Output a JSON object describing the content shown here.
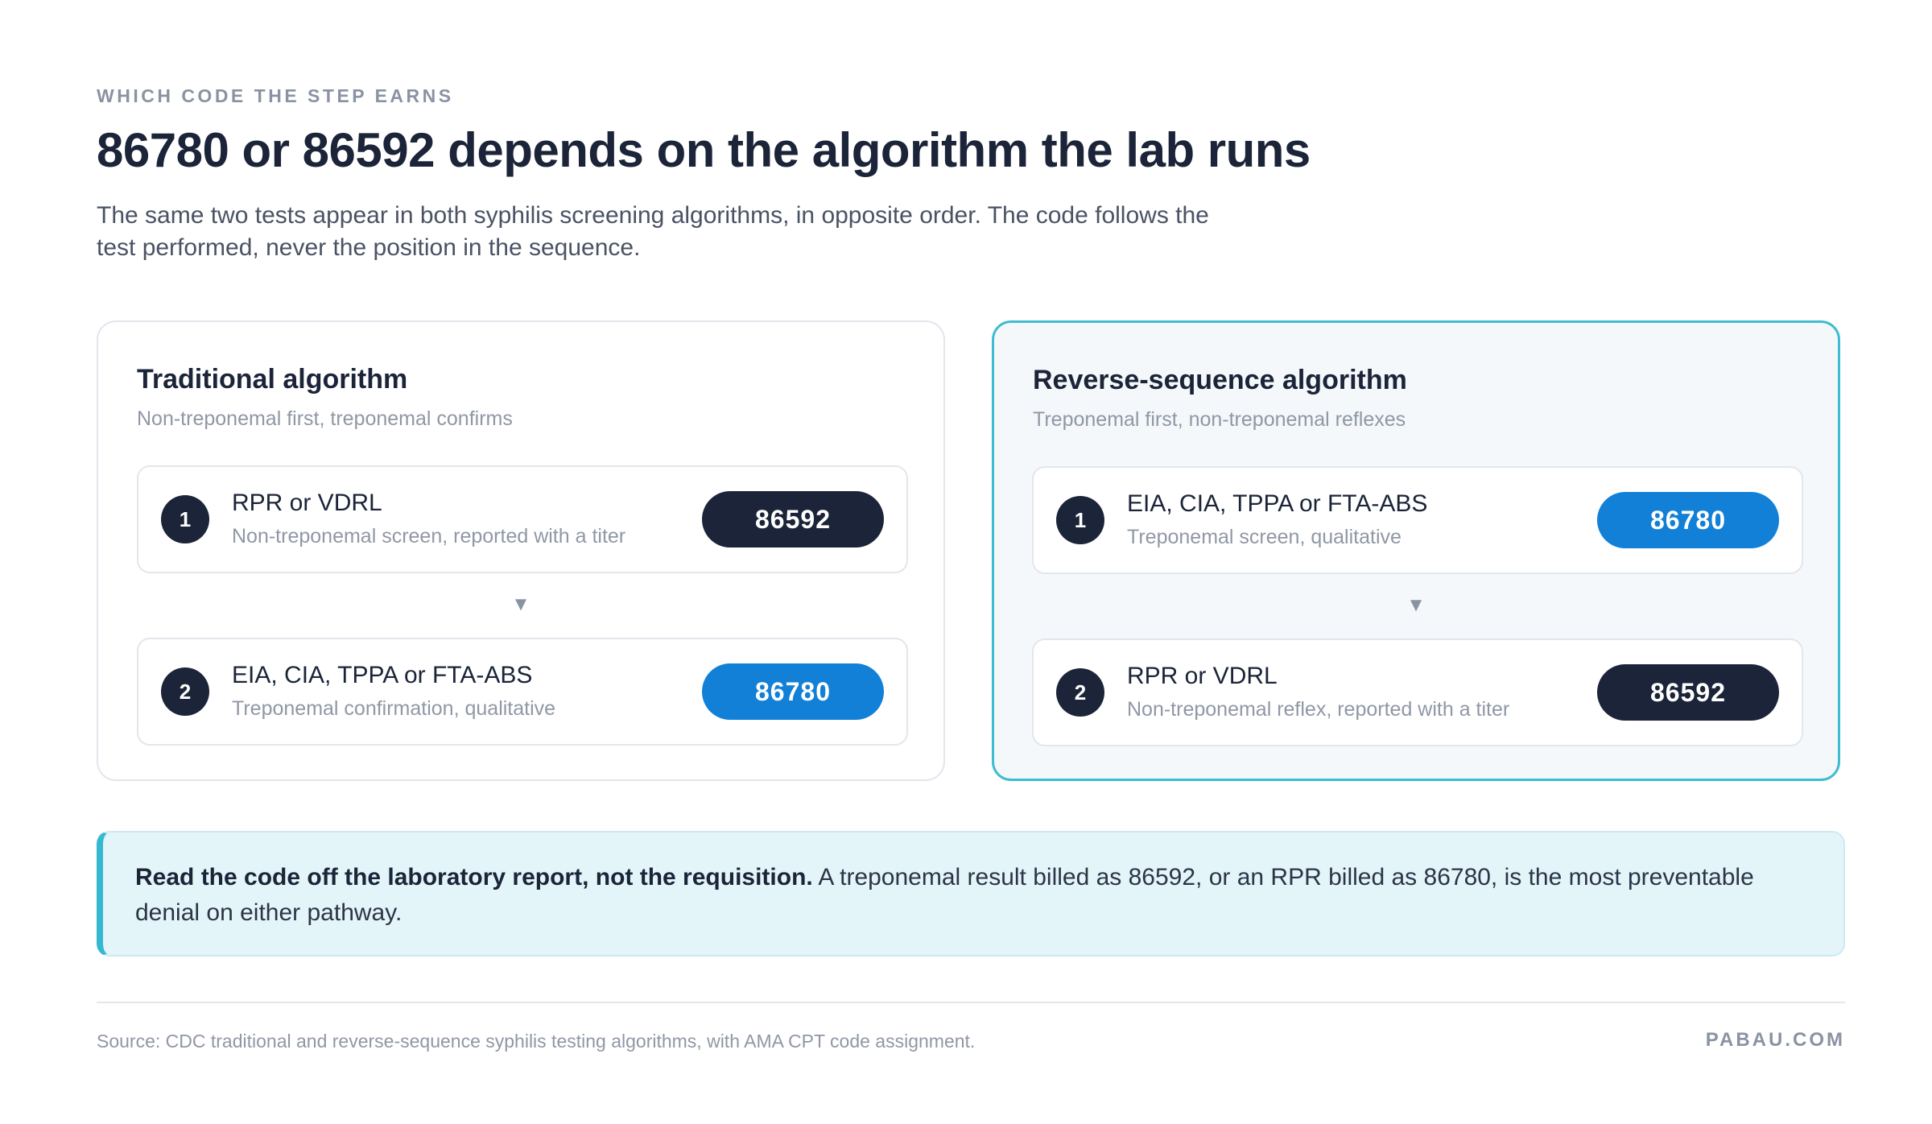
{
  "eyebrow": "WHICH CODE THE STEP EARNS",
  "title": "86780 or 86592 depends on the algorithm the lab runs",
  "subtitle": "The same two tests appear in both syphilis screening algorithms, in opposite order. The code follows the test performed, never the position in the sequence.",
  "panels": [
    {
      "title": "Traditional algorithm",
      "subtitle": "Non-treponemal first, treponemal confirms",
      "highlighted": false,
      "arrow": "▼",
      "steps": [
        {
          "number": "1",
          "name": "RPR or VDRL",
          "description": "Non-treponemal screen, reported with a titer",
          "code": "86592",
          "code_color": "#1b2438"
        },
        {
          "number": "2",
          "name": "EIA, CIA, TPPA or FTA-ABS",
          "description": "Treponemal confirmation, qualitative",
          "code": "86780",
          "code_color": "#1280d6"
        }
      ]
    },
    {
      "title": "Reverse-sequence algorithm",
      "subtitle": "Treponemal first, non-treponemal reflexes",
      "highlighted": true,
      "arrow": "▼",
      "steps": [
        {
          "number": "1",
          "name": "EIA, CIA, TPPA or FTA-ABS",
          "description": "Treponemal screen, qualitative",
          "code": "86780",
          "code_color": "#1280d6"
        },
        {
          "number": "2",
          "name": "RPR or VDRL",
          "description": "Non-treponemal reflex, reported with a titer",
          "code": "86592",
          "code_color": "#1b2438"
        }
      ]
    }
  ],
  "note": {
    "bold": "Read the code off the laboratory report, not the requisition.",
    "text": " A treponemal result billed as 86592, or an RPR billed as 86780, is the most preventable denial on either pathway."
  },
  "footer": {
    "source": "Source: CDC traditional and reverse-sequence syphilis testing algorithms, with AMA CPT code assignment.",
    "brand": "PABAU.COM"
  },
  "colors": {
    "navy": "#1b2438",
    "blue": "#1280d6",
    "teal_accent": "#3dbdd0",
    "note_background": "#e4f5fa"
  }
}
